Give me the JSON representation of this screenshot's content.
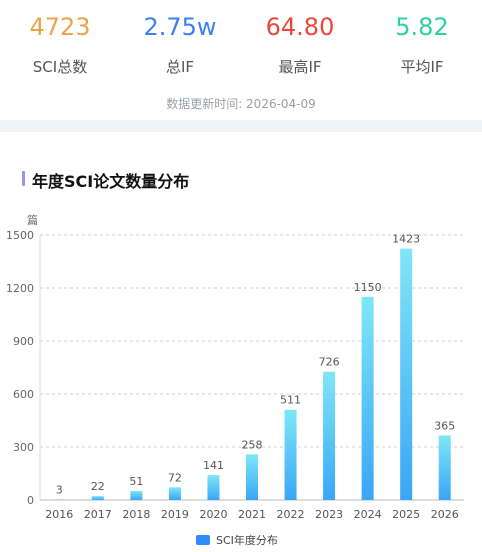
{
  "stats": [
    {
      "value": "4723",
      "label": "SCI总数",
      "color": "#f0a14b"
    },
    {
      "value": "2.75w",
      "label": "总IF",
      "color": "#3c80f0"
    },
    {
      "value": "64.80",
      "label": "最高IF",
      "color": "#e8483d"
    },
    {
      "value": "5.82",
      "label": "平均IF",
      "color": "#2fd0a0"
    }
  ],
  "updated_text": "数据更新时间: 2026-04-09",
  "section_title": "年度SCI论文数量分布",
  "chart_data": {
    "type": "bar",
    "title": "",
    "ylabel": "篇",
    "categories": [
      "2016",
      "2017",
      "2018",
      "2019",
      "2020",
      "2021",
      "2022",
      "2023",
      "2024",
      "2025",
      "2026"
    ],
    "series": [
      {
        "name": "SCI年度分布",
        "values": [
          3,
          22,
          51,
          72,
          141,
          258,
          511,
          726,
          1150,
          1423,
          365
        ]
      }
    ],
    "ylim": [
      0,
      1500
    ],
    "yticks": [
      0,
      300,
      600,
      900,
      1200,
      1500
    ],
    "grid": true,
    "legend": "bottom-center",
    "colors": {
      "bar_top": "#7fe6f7",
      "bar_bottom": "#3aa6f7",
      "legend": "#2f8cf7"
    }
  }
}
